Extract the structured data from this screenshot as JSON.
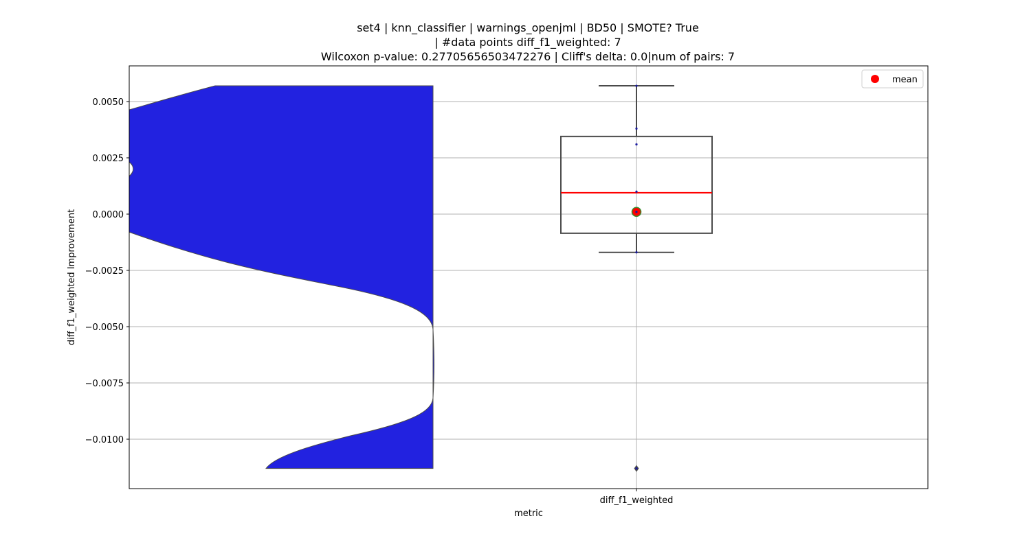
{
  "title": {
    "line1": "set4 | knn_classifier | warnings_openjml | BD50 | SMOTE? True",
    "line2": "| #data points diff_f1_weighted: 7",
    "line3": "Wilcoxon p-value: 0.27705656503472276 | Cliff's delta: 0.0|num of pairs: 7"
  },
  "chart_data": {
    "type": "box",
    "overlay": "violin",
    "title": "set4 | knn_classifier | warnings_openjml | BD50 | SMOTE? True | #data points diff_f1_weighted: 7 Wilcoxon p-value: 0.27705656503472276 | Cliff's delta: 0.0|num of pairs: 7",
    "xlabel": "metric",
    "ylabel": "diff_f1_weighted Improvement",
    "categories": [
      "diff_f1_weighted"
    ],
    "ylim": [
      -0.0122,
      0.0065
    ],
    "yticks": [
      0.005,
      0.0025,
      0.0,
      -0.0025,
      -0.005,
      -0.0075,
      -0.01
    ],
    "ytick_labels": [
      "0.0050",
      "0.0025",
      "0.0000",
      "−0.0025",
      "−0.0050",
      "−0.0075",
      "−0.0100"
    ],
    "grid": true,
    "legend": {
      "placement": "top-right",
      "entries": [
        {
          "label": "mean",
          "marker": "circle",
          "color": "#ff0000"
        }
      ]
    },
    "box": {
      "whisker_high": 0.0057,
      "q3": 0.00345,
      "median": 0.00095,
      "q1": -0.00085,
      "whisker_low": -0.0017,
      "mean": 0.0001,
      "outliers": [
        -0.0113
      ]
    },
    "points": [
      0.0057,
      0.0038,
      0.0031,
      0.001,
      0.0001,
      -0.0017,
      -0.0113
    ],
    "colors": {
      "violin_fill": "#2222e0",
      "box_edge": "#4a4a4a",
      "median": "#ff0000",
      "mean": "#ff0000",
      "mean_edge": "#3a8a2a",
      "grid": "#b0b0b0"
    }
  }
}
